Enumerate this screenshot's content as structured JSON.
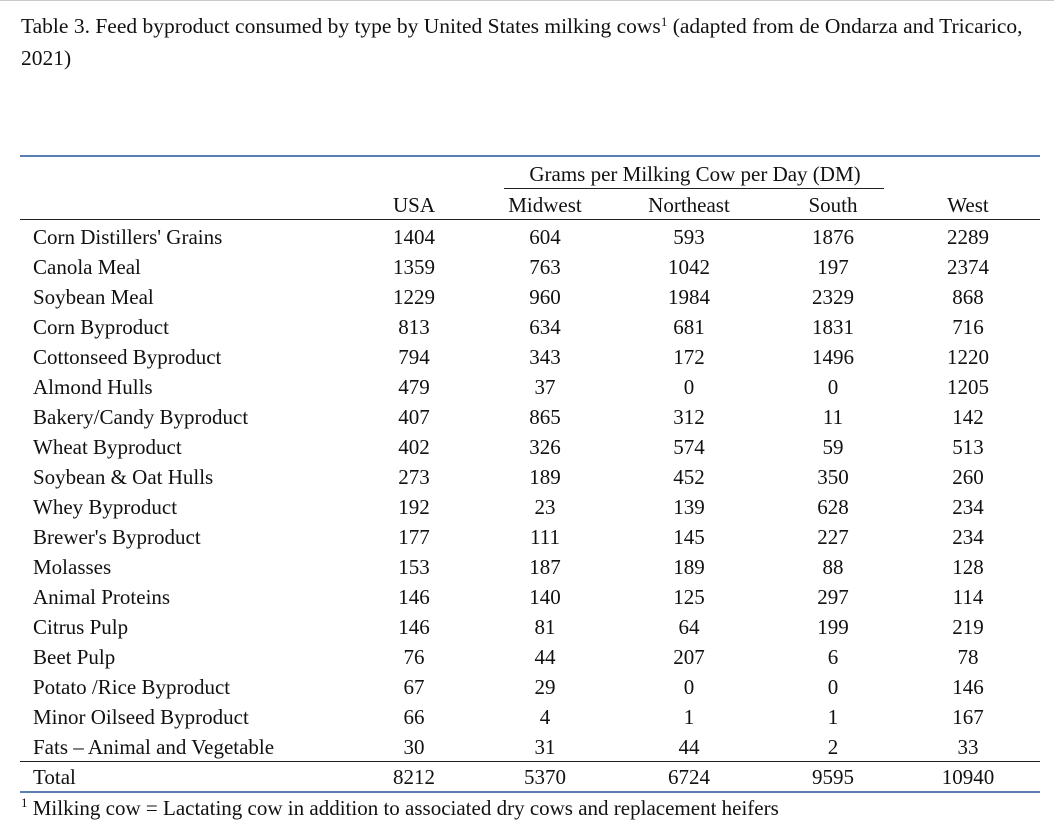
{
  "caption": {
    "text_before_sup": "Table 3. Feed byproduct consumed by type by United States milking cows",
    "sup": "1",
    "text_after_sup": " (adapted from de Ondarza and Tricarico, 2021)"
  },
  "table": {
    "group_header": "Grams per Milking Cow per Day (DM)",
    "columns": [
      "USA",
      "Midwest",
      "Northeast",
      "South",
      "West"
    ],
    "rows": [
      {
        "name": "Corn Distillers' Grains",
        "values": [
          "1404",
          "604",
          "593",
          "1876",
          "2289"
        ]
      },
      {
        "name": "Canola Meal",
        "values": [
          "1359",
          "763",
          "1042",
          "197",
          "2374"
        ]
      },
      {
        "name": "Soybean Meal",
        "values": [
          "1229",
          "960",
          "1984",
          "2329",
          "868"
        ]
      },
      {
        "name": "Corn Byproduct",
        "values": [
          "813",
          "634",
          "681",
          "1831",
          "716"
        ]
      },
      {
        "name": "Cottonseed Byproduct",
        "values": [
          "794",
          "343",
          "172",
          "1496",
          "1220"
        ]
      },
      {
        "name": "Almond Hulls",
        "values": [
          "479",
          "37",
          "0",
          "0",
          "1205"
        ]
      },
      {
        "name": "Bakery/Candy Byproduct",
        "values": [
          "407",
          "865",
          "312",
          "11",
          "142"
        ]
      },
      {
        "name": "Wheat Byproduct",
        "values": [
          "402",
          "326",
          "574",
          "59",
          "513"
        ]
      },
      {
        "name": "Soybean & Oat Hulls",
        "values": [
          "273",
          "189",
          "452",
          "350",
          "260"
        ]
      },
      {
        "name": "Whey Byproduct",
        "values": [
          "192",
          "23",
          "139",
          "628",
          "234"
        ]
      },
      {
        "name": "Brewer's Byproduct",
        "values": [
          "177",
          "111",
          "145",
          "227",
          "234"
        ]
      },
      {
        "name": "Molasses",
        "values": [
          "153",
          "187",
          "189",
          "88",
          "128"
        ]
      },
      {
        "name": "Animal Proteins",
        "values": [
          "146",
          "140",
          "125",
          "297",
          "114"
        ]
      },
      {
        "name": "Citrus Pulp",
        "values": [
          "146",
          "81",
          "64",
          "199",
          "219"
        ]
      },
      {
        "name": "Beet Pulp",
        "values": [
          "76",
          "44",
          "207",
          "6",
          "78"
        ]
      },
      {
        "name": "Potato /Rice Byproduct",
        "values": [
          "67",
          "29",
          "0",
          "0",
          "146"
        ]
      },
      {
        "name": "Minor Oilseed Byproduct",
        "values": [
          "66",
          "4",
          "1",
          "1",
          "167"
        ]
      },
      {
        "name": "Fats – Animal and Vegetable",
        "values": [
          "30",
          "31",
          "44",
          "2",
          "33"
        ]
      }
    ],
    "total": {
      "name": "Total",
      "values": [
        "8212",
        "5370",
        "6724",
        "9595",
        "10940"
      ]
    }
  },
  "footnote": {
    "sup": "1",
    "text": " Milking cow = Lactating cow in addition to associated dry cows and replacement heifers"
  },
  "colors": {
    "rule_blue": "#5b7fb0",
    "rule_black": "#222222",
    "text": "#111111"
  }
}
